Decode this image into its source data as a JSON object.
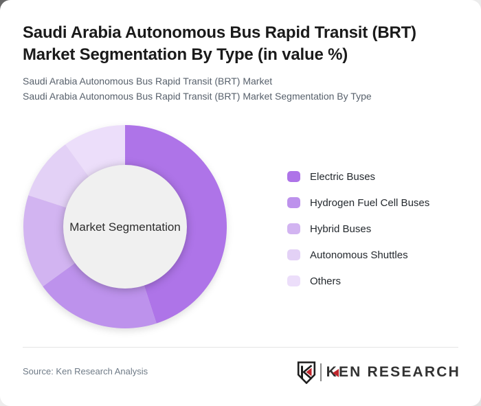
{
  "header": {
    "title_line1": "Saudi Arabia Autonomous Bus Rapid Transit (BRT)",
    "title_line2": "Market Segmentation By Type (in value %)",
    "subtitle_line1": "Saudi Arabia Autonomous Bus Rapid Transit (BRT) Market",
    "subtitle_line2": "Saudi Arabia Autonomous Bus Rapid Transit (BRT) Market Segmentation By Type"
  },
  "chart_data": {
    "type": "pie",
    "variant": "donut",
    "title": "Saudi Arabia Autonomous Bus Rapid Transit (BRT) Market Segmentation By Type (in value %)",
    "center_label": "Market Segmentation",
    "categories": [
      "Electric Buses",
      "Hydrogen Fuel Cell Buses",
      "Hybrid Buses",
      "Autonomous Shuttles",
      "Others"
    ],
    "values": [
      45,
      20,
      15,
      10,
      10
    ],
    "unit": "percent of market value",
    "colors": [
      "#ae74e8",
      "#bd92ec",
      "#d2b4f1",
      "#e3d1f6",
      "#ecdefa"
    ],
    "hole_color": "#f0f0f0",
    "start_angle_deg": 0,
    "direction": "clockwise",
    "legend_position": "right",
    "data_labels_shown": false
  },
  "footer": {
    "source": "Source: Ken Research Analysis",
    "logo": {
      "k": "K",
      "rest": "EN RESEARCH"
    }
  },
  "theme": {
    "title_color": "#1a1a1a",
    "subtitle_color": "#57606b",
    "legend_text_color": "#24292e",
    "source_color": "#6f7b87",
    "logo_dark": "#323232",
    "logo_red": "#c0272d",
    "card_background": "#ffffff"
  }
}
